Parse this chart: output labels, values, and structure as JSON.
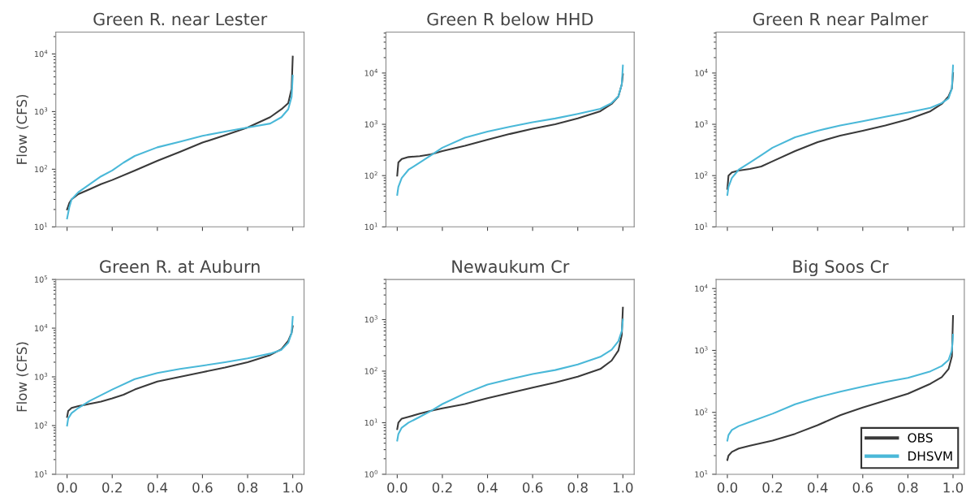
{
  "chart_data": [
    {
      "type": "line",
      "title": "Green R. near Lester",
      "ylabel": "Flow (CFS)",
      "log": "y",
      "tick_labels": "y",
      "xlim": [
        -0.05,
        1.05
      ],
      "xticks": [
        {
          "value": 0.0,
          "label": null
        },
        {
          "value": 0.2,
          "label": null
        },
        {
          "value": 0.4,
          "label": null
        },
        {
          "value": 0.6,
          "label": null
        },
        {
          "value": 0.8,
          "label": null
        },
        {
          "value": 1.0,
          "label": null
        }
      ],
      "ylim": [
        10,
        24000
      ],
      "yticks": [
        {
          "value": 10,
          "label": "10$^{1}$"
        },
        {
          "value": 100,
          "label": "10$^{2}$"
        },
        {
          "value": 1000,
          "label": "10$^{3}$"
        },
        {
          "value": 10000,
          "label": "10$^{4}$"
        }
      ],
      "series": [
        {
          "color": "#3a3a3a",
          "x": [
            0,
            0.01,
            0.02,
            0.05,
            0.1,
            0.15,
            0.2,
            0.3,
            0.4,
            0.5,
            0.6,
            0.7,
            0.8,
            0.9,
            0.95,
            0.98,
            0.995,
            1.0
          ],
          "values": [
            20,
            26,
            30,
            37,
            45,
            55,
            65,
            95,
            140,
            200,
            290,
            390,
            530,
            800,
            1100,
            1400,
            2500,
            9000
          ]
        },
        {
          "color": "#4ab8d8",
          "x": [
            0,
            0.01,
            0.02,
            0.05,
            0.1,
            0.15,
            0.2,
            0.25,
            0.3,
            0.4,
            0.5,
            0.6,
            0.7,
            0.8,
            0.9,
            0.95,
            0.98,
            0.995,
            1.0
          ],
          "values": [
            14,
            22,
            30,
            40,
            55,
            75,
            95,
            130,
            170,
            240,
            300,
            380,
            450,
            530,
            620,
            800,
            1100,
            1800,
            4200
          ]
        }
      ]
    },
    {
      "type": "line",
      "title": "Green R below HHD",
      "log": "y",
      "tick_labels": "y",
      "xlim": [
        -0.05,
        1.05
      ],
      "xticks": [
        {
          "value": 0.0,
          "label": null
        },
        {
          "value": 0.2,
          "label": null
        },
        {
          "value": 0.4,
          "label": null
        },
        {
          "value": 0.6,
          "label": null
        },
        {
          "value": 0.8,
          "label": null
        },
        {
          "value": 1.0,
          "label": null
        }
      ],
      "ylim": [
        10,
        63000
      ],
      "yticks": [
        {
          "value": 10,
          "label": "10$^{1}$"
        },
        {
          "value": 100,
          "label": "10$^{2}$"
        },
        {
          "value": 1000,
          "label": "10$^{3}$"
        },
        {
          "value": 10000,
          "label": "10$^{4}$"
        }
      ],
      "series": [
        {
          "color": "#3a3a3a",
          "x": [
            0,
            0.005,
            0.02,
            0.05,
            0.1,
            0.15,
            0.2,
            0.3,
            0.4,
            0.5,
            0.6,
            0.7,
            0.8,
            0.9,
            0.95,
            0.98,
            0.995,
            1.0
          ],
          "values": [
            100,
            180,
            210,
            230,
            240,
            260,
            300,
            380,
            500,
            650,
            820,
            1000,
            1300,
            1800,
            2500,
            3500,
            6000,
            9500
          ]
        },
        {
          "color": "#4ab8d8",
          "x": [
            0,
            0.005,
            0.02,
            0.05,
            0.1,
            0.15,
            0.2,
            0.3,
            0.4,
            0.5,
            0.6,
            0.7,
            0.8,
            0.9,
            0.95,
            0.98,
            0.995,
            1.0
          ],
          "values": [
            42,
            60,
            90,
            130,
            180,
            250,
            350,
            550,
            720,
            900,
            1100,
            1300,
            1600,
            2000,
            2600,
            3500,
            6000,
            14000
          ]
        }
      ]
    },
    {
      "type": "line",
      "title": "Green R near Palmer",
      "log": "y",
      "tick_labels": "y",
      "xlim": [
        -0.05,
        1.05
      ],
      "xticks": [
        {
          "value": 0.0,
          "label": null
        },
        {
          "value": 0.2,
          "label": null
        },
        {
          "value": 0.4,
          "label": null
        },
        {
          "value": 0.6,
          "label": null
        },
        {
          "value": 0.8,
          "label": null
        },
        {
          "value": 1.0,
          "label": null
        }
      ],
      "ylim": [
        10,
        63000
      ],
      "yticks": [
        {
          "value": 10,
          "label": "10$^{1}$"
        },
        {
          "value": 100,
          "label": "10$^{2}$"
        },
        {
          "value": 1000,
          "label": "10$^{3}$"
        },
        {
          "value": 10000,
          "label": "10$^{4}$"
        }
      ],
      "series": [
        {
          "color": "#3a3a3a",
          "x": [
            0,
            0.005,
            0.02,
            0.05,
            0.1,
            0.15,
            0.2,
            0.3,
            0.4,
            0.5,
            0.6,
            0.7,
            0.8,
            0.9,
            0.95,
            0.98,
            0.995,
            1.0
          ],
          "values": [
            55,
            100,
            115,
            125,
            135,
            150,
            190,
            300,
            450,
            600,
            750,
            950,
            1250,
            1800,
            2500,
            3500,
            5000,
            10000
          ]
        },
        {
          "color": "#4ab8d8",
          "x": [
            0,
            0.005,
            0.02,
            0.05,
            0.1,
            0.15,
            0.2,
            0.3,
            0.4,
            0.5,
            0.6,
            0.7,
            0.8,
            0.9,
            0.95,
            0.98,
            0.995,
            1.0
          ],
          "values": [
            42,
            60,
            90,
            130,
            180,
            250,
            350,
            560,
            750,
            950,
            1150,
            1400,
            1700,
            2100,
            2600,
            3200,
            5000,
            14000
          ]
        }
      ]
    },
    {
      "type": "line",
      "title": "Green R. at Auburn",
      "ylabel": "Flow (CFS)",
      "log": "y",
      "xlim": [
        -0.05,
        1.05
      ],
      "xticks": [
        {
          "value": 0.0,
          "label": "0.0"
        },
        {
          "value": 0.2,
          "label": "0.2"
        },
        {
          "value": 0.4,
          "label": "0.4"
        },
        {
          "value": 0.6,
          "label": "0.6"
        },
        {
          "value": 0.8,
          "label": "0.8"
        },
        {
          "value": 1.0,
          "label": "1.0"
        }
      ],
      "ylim": [
        10,
        100000
      ],
      "yticks": [
        {
          "value": 10,
          "label": "10$^{1}$"
        },
        {
          "value": 100,
          "label": "10$^{2}$"
        },
        {
          "value": 1000,
          "label": "10$^{3}$"
        },
        {
          "value": 10000,
          "label": "10$^{4}$"
        },
        {
          "value": 100000,
          "label": "10$^{5}$"
        }
      ],
      "series": [
        {
          "color": "#3a3a3a",
          "x": [
            0,
            0.005,
            0.02,
            0.05,
            0.1,
            0.15,
            0.2,
            0.25,
            0.3,
            0.4,
            0.5,
            0.6,
            0.7,
            0.8,
            0.9,
            0.95,
            0.98,
            0.995,
            1.0
          ],
          "values": [
            150,
            200,
            230,
            250,
            280,
            310,
            360,
            430,
            550,
            800,
            1000,
            1250,
            1550,
            2000,
            2800,
            3700,
            5500,
            8000,
            11000
          ]
        },
        {
          "color": "#4ab8d8",
          "x": [
            0,
            0.005,
            0.02,
            0.05,
            0.1,
            0.2,
            0.3,
            0.4,
            0.5,
            0.6,
            0.7,
            0.8,
            0.9,
            0.95,
            0.98,
            0.995,
            1.0
          ],
          "values": [
            100,
            140,
            180,
            230,
            320,
            550,
            900,
            1200,
            1450,
            1700,
            2000,
            2400,
            3000,
            3600,
            5000,
            8000,
            17000
          ]
        }
      ]
    },
    {
      "type": "line",
      "title": "Newaukum Cr",
      "log": "y",
      "xlim": [
        -0.05,
        1.05
      ],
      "xticks": [
        {
          "value": 0.0,
          "label": "0.0"
        },
        {
          "value": 0.2,
          "label": "0.2"
        },
        {
          "value": 0.4,
          "label": "0.4"
        },
        {
          "value": 0.6,
          "label": "0.6"
        },
        {
          "value": 0.8,
          "label": "0.8"
        },
        {
          "value": 1.0,
          "label": "1.0"
        }
      ],
      "ylim": [
        1,
        6000
      ],
      "yticks": [
        {
          "value": 1,
          "label": "10$^{0}$"
        },
        {
          "value": 10,
          "label": "10$^{1}$"
        },
        {
          "value": 100,
          "label": "10$^{2}$"
        },
        {
          "value": 1000,
          "label": "10$^{3}$"
        }
      ],
      "series": [
        {
          "color": "#3a3a3a",
          "x": [
            0,
            0.005,
            0.02,
            0.05,
            0.1,
            0.15,
            0.2,
            0.3,
            0.4,
            0.5,
            0.6,
            0.7,
            0.8,
            0.9,
            0.95,
            0.98,
            0.995,
            1.0
          ],
          "values": [
            7.5,
            10,
            12,
            13,
            15,
            17,
            19,
            23,
            30,
            38,
            48,
            60,
            78,
            110,
            160,
            250,
            500,
            1700
          ]
        },
        {
          "color": "#4ab8d8",
          "x": [
            0,
            0.005,
            0.02,
            0.05,
            0.1,
            0.15,
            0.2,
            0.3,
            0.4,
            0.5,
            0.6,
            0.7,
            0.8,
            0.9,
            0.95,
            0.98,
            0.995,
            1.0
          ],
          "values": [
            4.5,
            6,
            8,
            10,
            13,
            17,
            23,
            37,
            55,
            70,
            88,
            105,
            135,
            190,
            260,
            380,
            600,
            1000
          ]
        }
      ]
    },
    {
      "type": "line",
      "title": "Big Soos Cr",
      "log": "y",
      "legend": "lower right",
      "xlim": [
        -0.05,
        1.05
      ],
      "xticks": [
        {
          "value": 0.0,
          "label": "0.0"
        },
        {
          "value": 0.2,
          "label": "0.2"
        },
        {
          "value": 0.4,
          "label": "0.4"
        },
        {
          "value": 0.6,
          "label": "0.6"
        },
        {
          "value": 0.8,
          "label": "0.8"
        },
        {
          "value": 1.0,
          "label": "1.0"
        }
      ],
      "ylim": [
        10,
        14000
      ],
      "yticks": [
        {
          "value": 10,
          "label": "10$^{1}$"
        },
        {
          "value": 100,
          "label": "10$^{2}$"
        },
        {
          "value": 1000,
          "label": "10$^{3}$"
        },
        {
          "value": 10000,
          "label": "10$^{4}$"
        }
      ],
      "series": [
        {
          "name": "OBS",
          "color": "#3a3a3a",
          "x": [
            0,
            0.005,
            0.02,
            0.05,
            0.1,
            0.2,
            0.3,
            0.4,
            0.5,
            0.6,
            0.7,
            0.8,
            0.9,
            0.95,
            0.98,
            0.995,
            1.0
          ],
          "values": [
            17,
            20,
            23,
            26,
            29,
            35,
            45,
            62,
            90,
            120,
            155,
            200,
            290,
            370,
            500,
            800,
            3600
          ]
        },
        {
          "name": "DHSVM",
          "color": "#4ab8d8",
          "x": [
            0,
            0.005,
            0.02,
            0.05,
            0.1,
            0.2,
            0.3,
            0.4,
            0.5,
            0.6,
            0.7,
            0.8,
            0.9,
            0.95,
            0.98,
            0.995,
            1.0
          ],
          "values": [
            35,
            43,
            52,
            60,
            70,
            95,
            135,
            175,
            215,
            260,
            310,
            360,
            460,
            560,
            700,
            1000,
            1800
          ]
        }
      ]
    }
  ]
}
